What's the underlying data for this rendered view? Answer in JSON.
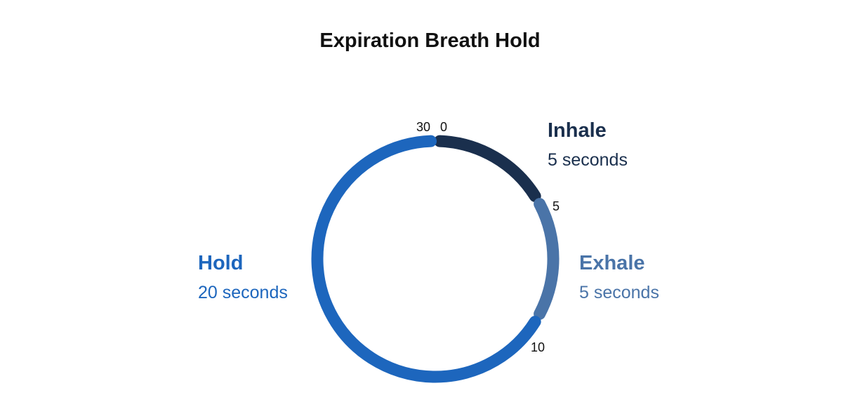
{
  "title": "Expiration Breath Hold",
  "cycle_total": 30,
  "phases": [
    {
      "name": "Inhale",
      "duration": "5 seconds",
      "start": 0,
      "end": 5,
      "color": "#1a2f4d"
    },
    {
      "name": "Exhale",
      "duration": "5 seconds",
      "start": 5,
      "end": 10,
      "color": "#4a74a8"
    },
    {
      "name": "Hold",
      "duration": "20 seconds",
      "start": 10,
      "end": 30,
      "color": "#1d66bd"
    }
  ],
  "ticks": {
    "t30": "30",
    "t0": "0",
    "t5": "5",
    "t10": "10"
  }
}
